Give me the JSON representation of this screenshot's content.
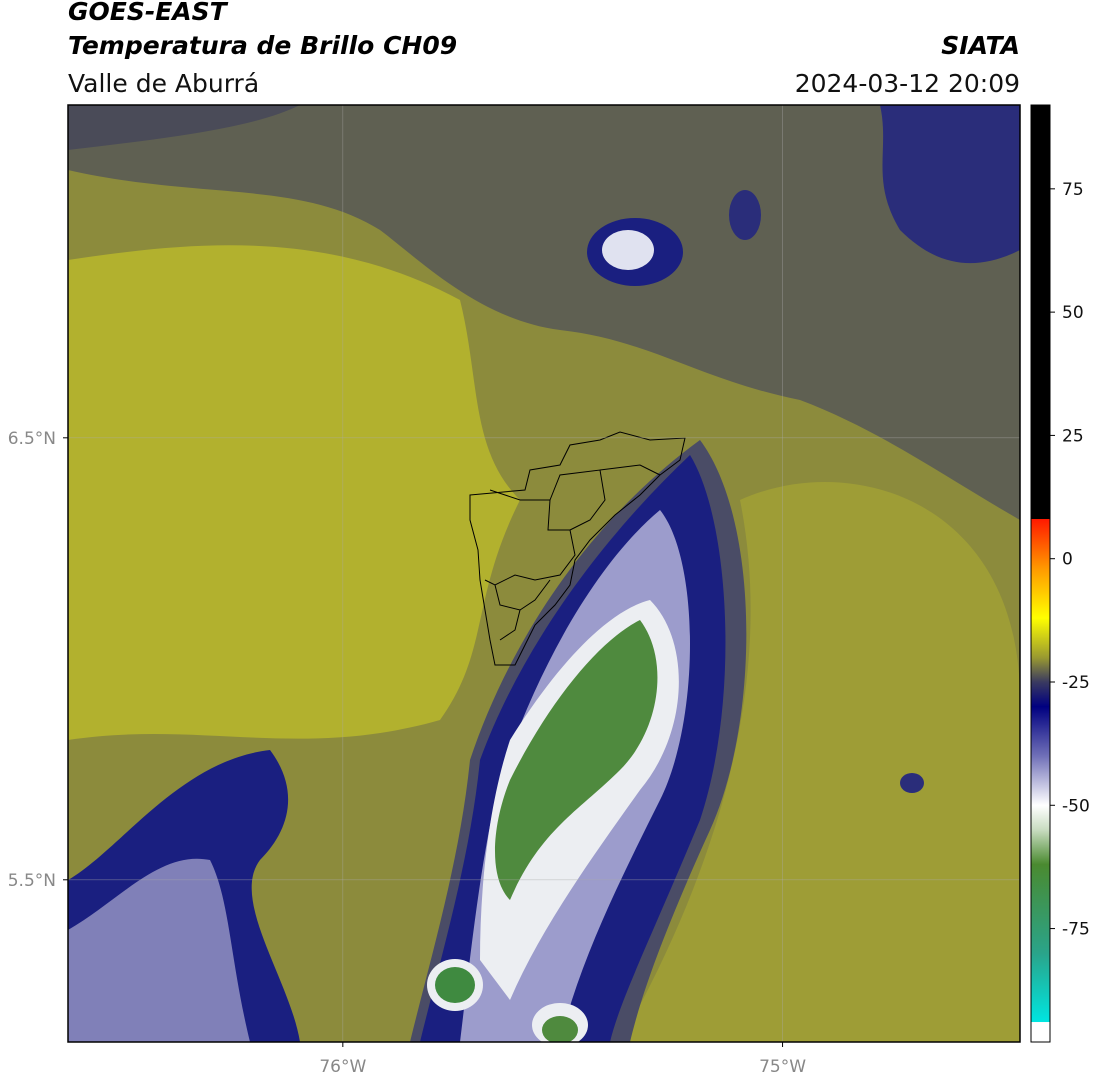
{
  "chart_data": {
    "type": "map",
    "title": "GOES-EAST",
    "subtitle": "Temperatura de Brillo CH09",
    "region": "Valle de Aburrá",
    "source": "SIATA",
    "timestamp": "2024-03-12 20:09",
    "xlim": [
      -76.625,
      -74.46
    ],
    "ylim": [
      5.133,
      7.253
    ],
    "xticks": [
      {
        "value": -76,
        "label": "76°W"
      },
      {
        "value": -75,
        "label": "75°W"
      }
    ],
    "yticks": [
      {
        "value": 6.5,
        "label": "6.5°N"
      },
      {
        "value": 5.5,
        "label": "5.5°N"
      }
    ],
    "grid": true,
    "colorbar": {
      "lim": [
        -98,
        92
      ],
      "ticks": [
        75,
        50,
        25,
        0,
        -25,
        -50,
        -75
      ],
      "colormap": [
        {
          "value": -98,
          "color": "#ffffff"
        },
        {
          "value": -94,
          "color": "#ffffff"
        },
        {
          "value": -93.9,
          "color": "#00e5e0"
        },
        {
          "value": -80,
          "color": "#2aa48a"
        },
        {
          "value": -62,
          "color": "#4a8a30"
        },
        {
          "value": -55,
          "color": "#c8dcc0"
        },
        {
          "value": -50,
          "color": "#ffffff"
        },
        {
          "value": -40,
          "color": "#7070b8"
        },
        {
          "value": -30,
          "color": "#000080"
        },
        {
          "value": -25,
          "color": "#3a3a60"
        },
        {
          "value": -20,
          "color": "#9a9a30"
        },
        {
          "value": -12,
          "color": "#ffff00"
        },
        {
          "value": -2,
          "color": "#ff9900"
        },
        {
          "value": 8,
          "color": "#ff1a00"
        },
        {
          "value": 8.1,
          "color": "#000000"
        },
        {
          "value": 92,
          "color": "#000000"
        }
      ]
    }
  }
}
